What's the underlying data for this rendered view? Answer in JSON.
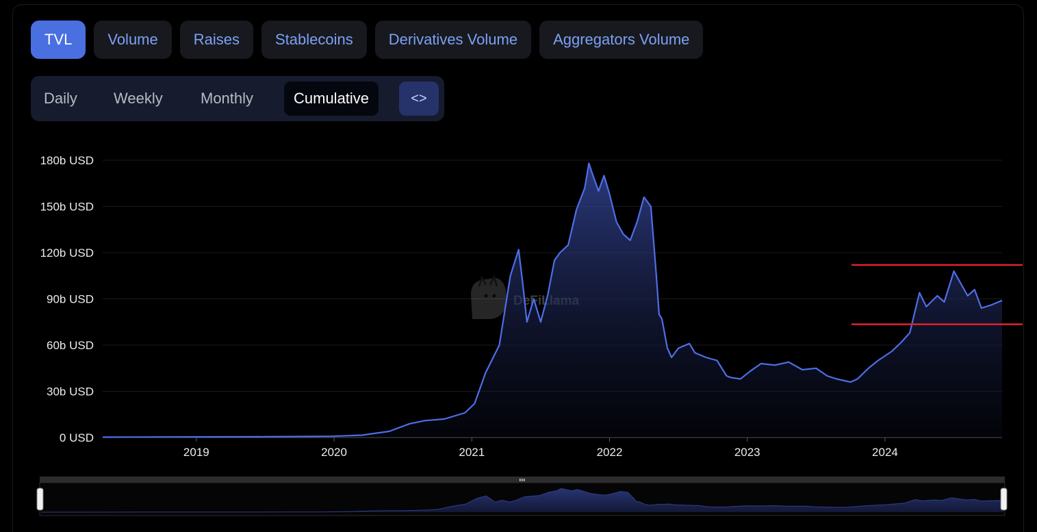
{
  "tabs": [
    {
      "label": "TVL",
      "active": true
    },
    {
      "label": "Volume",
      "active": false
    },
    {
      "label": "Raises",
      "active": false
    },
    {
      "label": "Stablecoins",
      "active": false
    },
    {
      "label": "Derivatives Volume",
      "active": false
    },
    {
      "label": "Aggregators Volume",
      "active": false
    }
  ],
  "periods": [
    {
      "label": "Daily",
      "active": false
    },
    {
      "label": "Weekly",
      "active": false
    },
    {
      "label": "Monthly",
      "active": false
    },
    {
      "label": "Cumulative",
      "active": true
    }
  ],
  "embed_icon": "code-brackets-icon",
  "embed_label": "<>",
  "watermark": "DeFiLlama",
  "colors": {
    "line": "#4f6ee8",
    "annotation": "#e0232e",
    "active_tab": "#4a6fe0"
  },
  "chart_data": {
    "type": "area",
    "ylabel_unit": "USD",
    "ylim": [
      0,
      180
    ],
    "xlim": [
      2018.32,
      2024.85
    ],
    "yticks": [
      {
        "value": 0,
        "label": "0 USD"
      },
      {
        "value": 30,
        "label": "30b USD"
      },
      {
        "value": 60,
        "label": "60b USD"
      },
      {
        "value": 90,
        "label": "90b USD"
      },
      {
        "value": 120,
        "label": "120b USD"
      },
      {
        "value": 150,
        "label": "150b USD"
      },
      {
        "value": 180,
        "label": "180b USD"
      }
    ],
    "xticks": [
      {
        "value": 2019,
        "label": "2019"
      },
      {
        "value": 2020,
        "label": "2020"
      },
      {
        "value": 2021,
        "label": "2021"
      },
      {
        "value": 2022,
        "label": "2022"
      },
      {
        "value": 2023,
        "label": "2023"
      },
      {
        "value": 2024,
        "label": "2024"
      }
    ],
    "grid": true,
    "series": [
      {
        "values_in": "billion USD",
        "x": [
          2018.32,
          2019.0,
          2019.5,
          2019.98,
          2020.2,
          2020.4,
          2020.55,
          2020.66,
          2020.8,
          2020.95,
          2021.02,
          2021.1,
          2021.2,
          2021.28,
          2021.34,
          2021.37,
          2021.4,
          2021.45,
          2021.5,
          2021.55,
          2021.6,
          2021.64,
          2021.7,
          2021.76,
          2021.82,
          2021.85,
          2021.88,
          2021.92,
          2021.96,
          2022.0,
          2022.05,
          2022.1,
          2022.15,
          2022.2,
          2022.25,
          2022.3,
          2022.34,
          2022.36,
          2022.38,
          2022.42,
          2022.45,
          2022.5,
          2022.58,
          2022.62,
          2022.7,
          2022.78,
          2022.85,
          2022.88,
          2022.95,
          2023.02,
          2023.1,
          2023.2,
          2023.3,
          2023.4,
          2023.5,
          2023.58,
          2023.65,
          2023.75,
          2023.8,
          2023.88,
          2023.95,
          2024.05,
          2024.12,
          2024.18,
          2024.25,
          2024.3,
          2024.38,
          2024.43,
          2024.5,
          2024.55,
          2024.6,
          2024.65,
          2024.7,
          2024.77,
          2024.85
        ],
        "y": [
          0.2,
          0.4,
          0.5,
          0.8,
          1.5,
          4.0,
          9.0,
          11.0,
          12.0,
          16.0,
          22.0,
          42.0,
          60.0,
          105.0,
          122.0,
          100.0,
          75.0,
          90.0,
          75.0,
          92.0,
          115.0,
          120.0,
          125.0,
          148.0,
          162.0,
          178.0,
          170.0,
          160.0,
          170.0,
          158.0,
          140.0,
          132.0,
          128.0,
          140.0,
          156.0,
          150.0,
          105.0,
          80.0,
          77.0,
          58.0,
          52.0,
          58.0,
          61.0,
          55.0,
          52.0,
          50.0,
          40.0,
          39.0,
          38.0,
          43.0,
          48.0,
          47.0,
          49.0,
          44.0,
          45.0,
          40.0,
          38.0,
          36.0,
          38.0,
          45.0,
          50.0,
          56.0,
          62.0,
          68.0,
          94.0,
          85.0,
          92.0,
          88.0,
          108.0,
          100.0,
          92.0,
          96.0,
          84.0,
          86.0,
          89.0
        ]
      }
    ],
    "annotations": [
      {
        "type": "hline",
        "value": 112
      },
      {
        "type": "hline",
        "value": 73.5
      }
    ],
    "range_selector": {
      "start": 2018.32,
      "end": 2024.85
    }
  }
}
